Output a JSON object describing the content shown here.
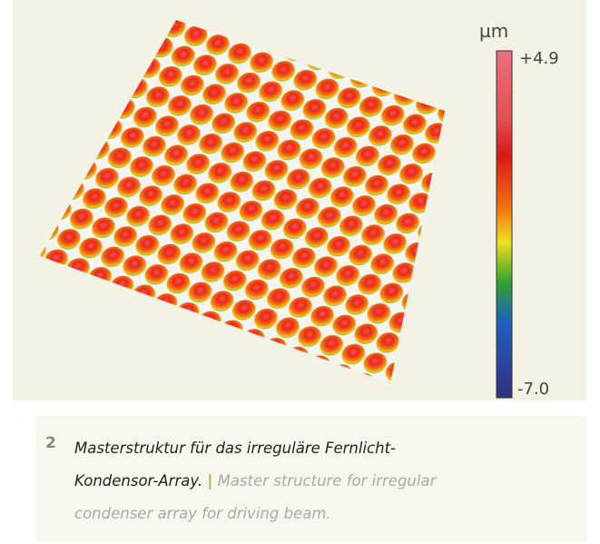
{
  "figure": {
    "colorbar": {
      "unit": "µm",
      "max_label": "+4.9",
      "min_label": "-7.0"
    },
    "caption": {
      "number": "2",
      "german": "Masterstruktur für das irreguläre Fernlicht-Kondensor-Array.",
      "separator": "|",
      "english": "Master structure for irregular condenser array for driving beam."
    }
  }
}
